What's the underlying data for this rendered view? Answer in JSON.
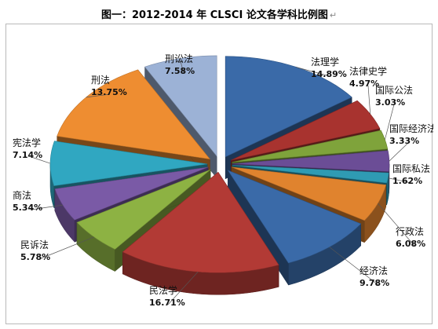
{
  "chart_title": "图一：2012-2014 年 CLSCI 论文各学科比例图",
  "chart_title_mark": "↵",
  "chart_data": {
    "type": "pie",
    "title": "图一：2012-2014 年 CLSCI 论文各学科比例图",
    "style": "3d-exploded",
    "slices": [
      {
        "label": "法理学",
        "value": 14.89,
        "display": "14.89%",
        "color": "#3a6aa8"
      },
      {
        "label": "法律史学",
        "value": 4.97,
        "display": "4.97%",
        "color": "#a8332f"
      },
      {
        "label": "国际公法",
        "value": 3.03,
        "display": "3.03%",
        "color": "#7fa33b"
      },
      {
        "label": "国际经济法",
        "value": 3.33,
        "display": "3.33%",
        "color": "#6b4d96"
      },
      {
        "label": "国际私法",
        "value": 1.62,
        "display": "1.62%",
        "color": "#2f9bb3"
      },
      {
        "label": "行政法",
        "value": 6.08,
        "display": "6.08%",
        "color": "#e0832e"
      },
      {
        "label": "经济法",
        "value": 9.78,
        "display": "9.78%",
        "color": "#3a6aa8"
      },
      {
        "label": "民法学",
        "value": 16.71,
        "display": "16.71%",
        "color": "#b23a35"
      },
      {
        "label": "民诉法",
        "value": 5.78,
        "display": "5.78%",
        "color": "#8db243"
      },
      {
        "label": "商法",
        "value": 5.34,
        "display": "5.34%",
        "color": "#7a5aa6"
      },
      {
        "label": "宪法学",
        "value": 7.14,
        "display": "7.14%",
        "color": "#30a7c1"
      },
      {
        "label": "刑法",
        "value": 13.75,
        "display": "13.75%",
        "color": "#ee8d31"
      },
      {
        "label": "刑讼法",
        "value": 7.58,
        "display": "7.58%",
        "color": "#9cb2d6"
      }
    ]
  }
}
